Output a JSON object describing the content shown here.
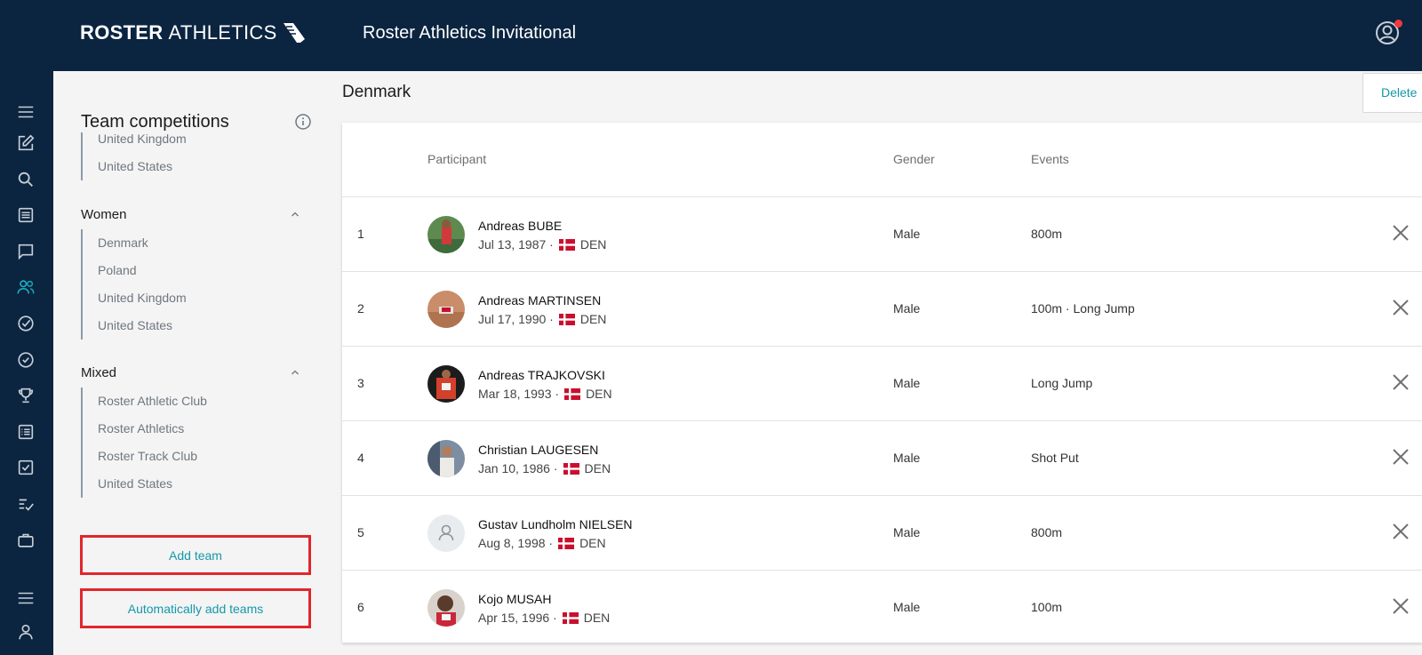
{
  "header": {
    "logo_bold": "ROSTER",
    "logo_light": "ATHLETICS",
    "event_title": "Roster Athletics Invitational"
  },
  "rail": {
    "icons": [
      "menu-icon",
      "edit-icon",
      "search-icon",
      "list-icon",
      "chat-icon",
      "users-icon",
      "check-circle-icon",
      "check-circle-outline-icon",
      "trophy-icon",
      "results-list-icon",
      "checkbox-icon",
      "checklist-icon",
      "briefcase-icon",
      "menu-icon",
      "person-icon"
    ]
  },
  "sidebar": {
    "title": "Team competitions",
    "clipped_top": [
      "United Kingdom",
      "United States"
    ],
    "groups": [
      {
        "label": "Women",
        "teams": [
          "Denmark",
          "Poland",
          "United Kingdom",
          "United States"
        ]
      },
      {
        "label": "Mixed",
        "teams": [
          "Roster Athletic Club",
          "Roster Athletics",
          "Roster Track Club",
          "United States"
        ]
      }
    ],
    "add_team": "Add team",
    "auto_add": "Automatically add teams"
  },
  "main": {
    "team_name": "Denmark",
    "delete": "Delete",
    "columns": {
      "participant": "Participant",
      "gender": "Gender",
      "events": "Events"
    },
    "rows": [
      {
        "num": "1",
        "name": "Andreas BUBE",
        "dob": "Jul 13, 1987 ·",
        "country": "DEN",
        "gender": "Male",
        "events": "800m"
      },
      {
        "num": "2",
        "name": "Andreas MARTINSEN",
        "dob": "Jul 17, 1990 ·",
        "country": "DEN",
        "gender": "Male",
        "events": "100m · Long Jump"
      },
      {
        "num": "3",
        "name": "Andreas TRAJKOVSKI",
        "dob": "Mar 18, 1993 ·",
        "country": "DEN",
        "gender": "Male",
        "events": "Long Jump"
      },
      {
        "num": "4",
        "name": "Christian LAUGESEN",
        "dob": "Jan 10, 1986 ·",
        "country": "DEN",
        "gender": "Male",
        "events": "Shot Put"
      },
      {
        "num": "5",
        "name": "Gustav Lundholm NIELSEN",
        "dob": "Aug 8, 1998 ·",
        "country": "DEN",
        "gender": "Male",
        "events": "800m"
      },
      {
        "num": "6",
        "name": "Kojo MUSAH",
        "dob": "Apr 15, 1996 ·",
        "country": "DEN",
        "gender": "Male",
        "events": "100m"
      }
    ]
  },
  "colors": {
    "navy": "#0b2440",
    "teal": "#1499a8",
    "highlight": "#e1262c",
    "flag_red": "#c8102e"
  }
}
